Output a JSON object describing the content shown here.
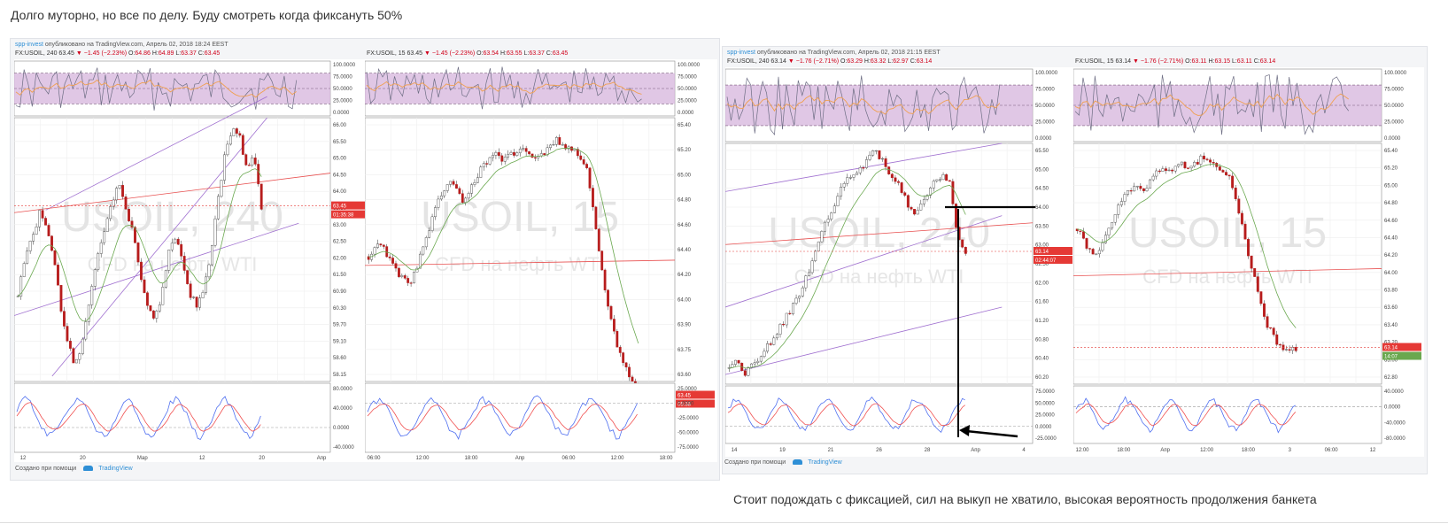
{
  "post": {
    "caption_top": "Долго муторно, но все по делу. Буду смотреть когда фиксануть 50%",
    "caption_bottom": "Стоит подождать с фиксацией, сил на выкуп не хватило, высокая вероятность продолжения банкета"
  },
  "snapshots": [
    {
      "author": "spp-invest",
      "published": "опубликовано на TradingView.com, Апрель 02, 2018 18:24 EEST",
      "footer": "Создано при помощи",
      "footer_brand": "TradingView"
    },
    {
      "author": "spp-invest",
      "published": "опубликовано на TradingView.com, Апрель 02, 2018 21:15 EEST",
      "footer": "Создано при помощи",
      "footer_brand": "TradingView"
    }
  ],
  "chart_data": [
    {
      "type": "candlestick",
      "symbol": "FX:USOIL, 240",
      "ohlc": {
        "last": "63.45",
        "change": "−1.45 (−2.23%)",
        "open": "64.86",
        "high": "64.89",
        "low": "63.37",
        "close": "63.45"
      },
      "watermark": "USOIL, 240",
      "watermark_sub": "CFD на нефть WTI",
      "price_axis": [
        "66.00",
        "65.50",
        "65.00",
        "64.50",
        "64.00",
        "63.50",
        "63.00",
        "62.50",
        "62.00",
        "61.50",
        "60.90",
        "60.30",
        "59.70",
        "59.10",
        "58.60",
        "58.15"
      ],
      "osc_axis_top": [
        "100.0000",
        "75.0000",
        "50.0000",
        "25.0000",
        "0.0000"
      ],
      "osc_axis_bottom": [
        "80.0000",
        "40.0000",
        "0.0000",
        "-40.0000"
      ],
      "time_axis": [
        "12",
        "20",
        "Мар",
        "12",
        "20",
        "Апр"
      ],
      "price_tag": "63.45",
      "timer_tag": "01:35:38",
      "trend_seed": [
        60.6,
        61.8,
        62.4,
        63.2,
        62.9,
        61.8,
        60.2,
        59.1,
        58.4,
        59.2,
        60.5,
        61.7,
        62.6,
        63.4,
        64.2,
        63.5,
        62.6,
        61.4,
        60.4,
        59.9,
        60.6,
        61.9,
        62.5,
        61.7,
        60.7,
        60.3,
        60.9,
        62.0,
        63.8,
        65.2,
        66.0,
        65.6,
        64.6,
        65.1,
        63.45
      ]
    },
    {
      "type": "candlestick",
      "symbol": "FX:USOIL, 15",
      "ohlc": {
        "last": "63.45",
        "change": "−1.45 (−2.23%)",
        "open": "63.54",
        "high": "63.55",
        "low": "63.37",
        "close": "63.45"
      },
      "watermark": "USOIL, 15",
      "watermark_sub": "CFD на нефть WTI",
      "price_axis": [
        "65.40",
        "65.20",
        "65.00",
        "64.80",
        "64.60",
        "64.40",
        "64.20",
        "64.00",
        "63.90",
        "63.75",
        "63.60"
      ],
      "osc_axis_top": [
        "100.0000",
        "75.0000",
        "50.0000",
        "25.0000",
        "0.0000"
      ],
      "osc_axis_bottom": [
        "25.0000",
        "0.0000",
        "-25.0000",
        "-50.0000",
        "-75.0000"
      ],
      "time_axis": [
        "06:00",
        "12:00",
        "18:00",
        "Апр",
        "06:00",
        "12:00",
        "18:00"
      ],
      "price_tag": "63.45",
      "timer_tag": "05:38",
      "trend_seed": [
        64.45,
        64.55,
        64.45,
        64.3,
        64.25,
        64.45,
        64.7,
        64.9,
        65.0,
        64.85,
        64.95,
        65.1,
        65.2,
        65.15,
        65.2,
        65.25,
        65.15,
        65.2,
        65.3,
        65.25,
        65.2,
        65.1,
        64.6,
        64.1,
        63.8,
        63.6,
        63.45
      ]
    },
    {
      "type": "candlestick",
      "symbol": "FX:USOIL, 240",
      "ohlc": {
        "last": "63.14",
        "change": "−1.76 (−2.71%)",
        "open": "63.29",
        "high": "63.32",
        "low": "62.97",
        "close": "63.14"
      },
      "watermark": "USOIL, 240",
      "watermark_sub": "CFD на нефть WTI",
      "price_axis": [
        "65.50",
        "65.00",
        "64.50",
        "64.00",
        "63.50",
        "63.00",
        "62.50",
        "62.00",
        "61.60",
        "61.20",
        "60.80",
        "60.40",
        "60.20"
      ],
      "osc_axis_top": [
        "100.0000",
        "75.0000",
        "50.0000",
        "25.0000",
        "0.0000"
      ],
      "osc_axis_bottom": [
        "75.0000",
        "50.0000",
        "25.0000",
        "0.0000",
        "-25.0000"
      ],
      "time_axis": [
        "14",
        "19",
        "21",
        "26",
        "28",
        "Апр",
        "4"
      ],
      "price_tag": "63.14",
      "timer_tag": "02:44:07",
      "trend_seed": [
        60.4,
        60.6,
        60.3,
        60.5,
        60.7,
        61.0,
        61.3,
        61.6,
        61.9,
        62.3,
        62.8,
        63.4,
        63.9,
        64.3,
        64.7,
        64.9,
        65.0,
        65.3,
        65.5,
        65.2,
        64.9,
        64.6,
        64.2,
        64.0,
        64.4,
        64.7,
        64.9,
        64.8,
        63.5,
        63.14
      ]
    },
    {
      "type": "candlestick",
      "symbol": "FX:USOIL, 15",
      "ohlc": {
        "last": "63.14",
        "change": "−1.76 (−2.71%)",
        "open": "63.11",
        "high": "63.15",
        "low": "63.11",
        "close": "63.14"
      },
      "watermark": "USOIL, 15",
      "watermark_sub": "CFD на нефть WTI",
      "price_axis": [
        "65.40",
        "65.20",
        "65.00",
        "64.80",
        "64.60",
        "64.40",
        "64.20",
        "64.00",
        "63.80",
        "63.60",
        "63.40",
        "63.20",
        "63.00",
        "62.80"
      ],
      "osc_axis_top": [
        "100.0000",
        "75.0000",
        "50.0000",
        "25.0000",
        "0.0000"
      ],
      "osc_axis_bottom": [
        "40.0000",
        "0.0000",
        "-40.0000",
        "-80.0000"
      ],
      "time_axis": [
        "12:00",
        "18:00",
        "Апр",
        "12:00",
        "18:00",
        "3",
        "06:00",
        "12"
      ],
      "price_tag": "63.14",
      "timer_tag": "14:07",
      "trend_seed": [
        64.5,
        64.3,
        64.2,
        64.4,
        64.7,
        64.9,
        65.0,
        64.9,
        65.1,
        65.2,
        65.15,
        65.25,
        65.2,
        65.3,
        65.25,
        65.2,
        65.1,
        64.7,
        64.2,
        63.8,
        63.4,
        63.2,
        63.1,
        63.14
      ]
    }
  ]
}
